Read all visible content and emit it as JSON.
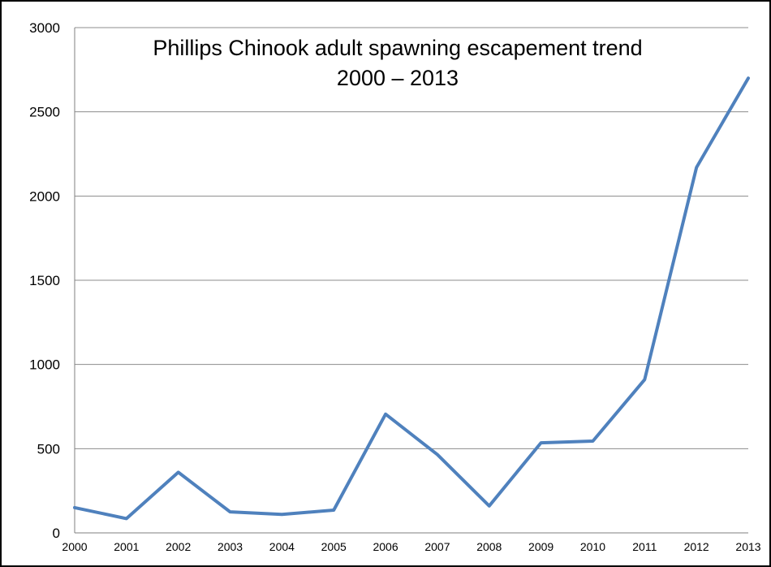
{
  "chart_data": {
    "type": "line",
    "title": "Phillips Chinook adult spawning escapement trend",
    "subtitle": "2000 – 2013",
    "xlabel": "",
    "ylabel": "",
    "x": [
      "2000",
      "2001",
      "2002",
      "2003",
      "2004",
      "2005",
      "2006",
      "2007",
      "2008",
      "2009",
      "2010",
      "2011",
      "2012",
      "2013"
    ],
    "series": [
      {
        "values": [
          150,
          85,
          360,
          125,
          110,
          135,
          705,
          465,
          160,
          535,
          545,
          910,
          2170,
          2700
        ],
        "color": "#4f81bd"
      }
    ],
    "ylim": [
      0,
      3000
    ],
    "yticks": [
      "0",
      "500",
      "1000",
      "1500",
      "2000",
      "2500",
      "3000"
    ],
    "grid": "horizontal",
    "legend": "none"
  }
}
